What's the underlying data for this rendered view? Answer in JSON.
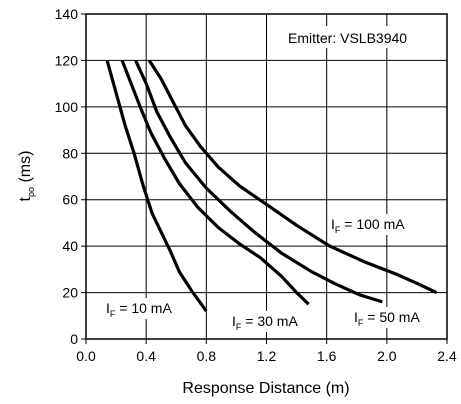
{
  "chart_data": {
    "type": "line",
    "xlabel": "Response Distance (m)",
    "ylabel": {
      "main": "t",
      "sub": "po",
      "unit": " (ms)"
    },
    "xlim": [
      0,
      2.4
    ],
    "ylim": [
      0,
      140
    ],
    "xticks": [
      "0.0",
      "0.4",
      "0.8",
      "1.2",
      "1.6",
      "2.0",
      "2.4"
    ],
    "yticks": [
      "0",
      "20",
      "40",
      "60",
      "80",
      "100",
      "120",
      "140"
    ],
    "grid": true,
    "annotation": "Emitter: VSLB3940",
    "series": [
      {
        "name": "I_F = 10 mA",
        "label": {
          "prefix": "I",
          "sub": "F",
          "suffix": " = 10 mA"
        },
        "x": [
          0.14,
          0.2,
          0.26,
          0.32,
          0.38,
          0.44,
          0.5,
          0.56,
          0.62,
          0.7,
          0.8
        ],
        "y": [
          120,
          106,
          92,
          80,
          66,
          54,
          46,
          38,
          29,
          21,
          12
        ]
      },
      {
        "name": "I_F = 30 mA",
        "label": {
          "prefix": "I",
          "sub": "F",
          "suffix": " = 30 mA"
        },
        "x": [
          0.24,
          0.3,
          0.36,
          0.43,
          0.52,
          0.62,
          0.74,
          0.88,
          1.02,
          1.16,
          1.3,
          1.4,
          1.48
        ],
        "y": [
          120,
          110,
          100,
          89,
          78,
          67,
          57,
          48,
          41,
          35,
          27,
          20,
          15
        ]
      },
      {
        "name": "I_F = 50 mA",
        "label": {
          "prefix": "I",
          "sub": "F",
          "suffix": " = 50 mA"
        },
        "x": [
          0.33,
          0.4,
          0.47,
          0.56,
          0.66,
          0.8,
          0.96,
          1.12,
          1.3,
          1.5,
          1.65,
          1.82,
          1.97
        ],
        "y": [
          120,
          110,
          98,
          87,
          76,
          65,
          55,
          46,
          37,
          29,
          24,
          19,
          16
        ]
      },
      {
        "name": "I_F = 100 mA",
        "label": {
          "prefix": "I",
          "sub": "F",
          "suffix": " = 100 mA"
        },
        "x": [
          0.42,
          0.5,
          0.58,
          0.66,
          0.76,
          0.88,
          1.02,
          1.2,
          1.4,
          1.62,
          1.86,
          2.06,
          2.2,
          2.33
        ],
        "y": [
          120,
          112,
          102,
          92,
          83,
          74,
          66,
          58,
          49,
          40,
          33,
          28,
          24,
          20
        ]
      }
    ]
  }
}
